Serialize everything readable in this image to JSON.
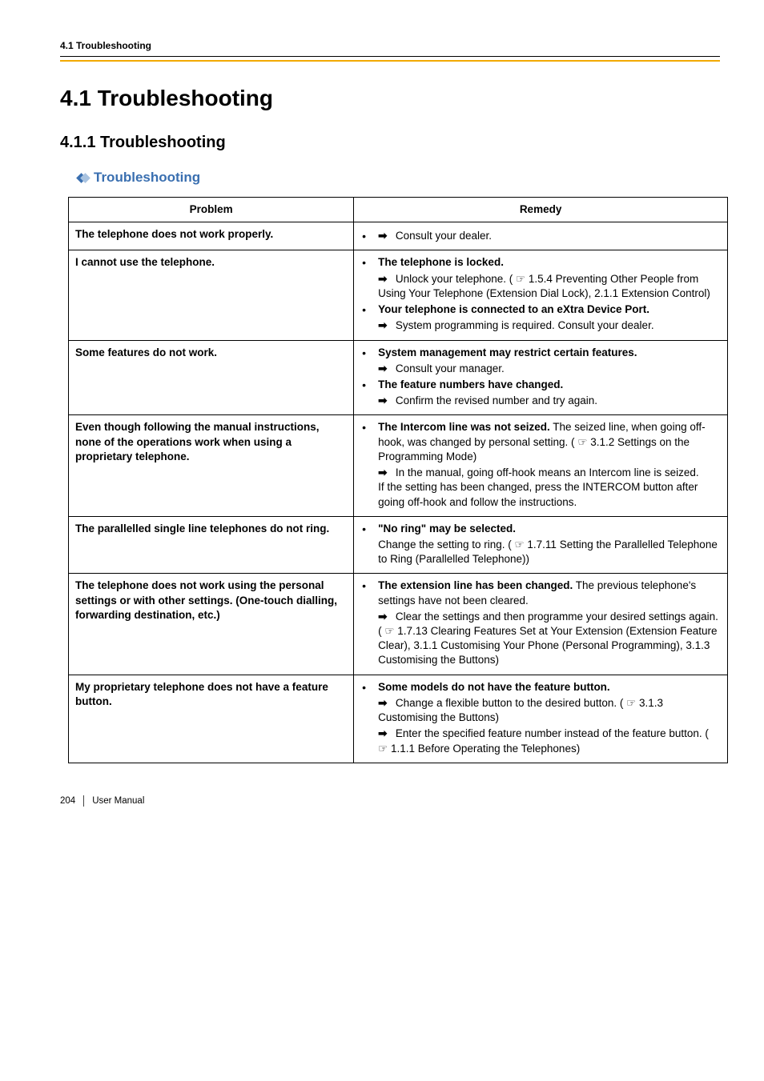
{
  "breadcrumb": "4.1 Troubleshooting",
  "section_number_title": "4.1   Troubleshooting",
  "subsection_number_title": "4.1.1   Troubleshooting",
  "subtitle": "Troubleshooting",
  "colors": {
    "accent": "#f2a900",
    "heading_blue": "#3a6fb0",
    "diamond_fill": "#3a6fb0",
    "diamond_light": "#a9c3e0"
  },
  "table": {
    "header_problem": "Problem",
    "header_remedy": "Remedy"
  },
  "rows": [
    {
      "problem": "The telephone does not work properly.",
      "remedies": [
        {
          "lead": "",
          "arrow_text": "Consult your dealer."
        }
      ]
    },
    {
      "problem": "I cannot use the telephone.",
      "remedies": [
        {
          "lead": "The telephone is locked.",
          "arrow_text": "Unlock your telephone. (",
          "ref": "1.5.4 Preventing Other People from Using Your Telephone (Extension Dial Lock), 2.1.1 Extension Control)"
        },
        {
          "lead": "Your telephone is connected to an eXtra Device Port.",
          "arrow_text": "System programming is required. Consult your dealer."
        }
      ]
    },
    {
      "problem": "Some features do not work.",
      "remedies": [
        {
          "lead": "System management may restrict certain features.",
          "arrow_text": "Consult your manager."
        },
        {
          "lead": "The feature numbers have changed.",
          "arrow_text": "Confirm the revised number and try again."
        }
      ]
    },
    {
      "problem": "Even though following the manual instructions, none of the operations work when using a proprietary telephone.",
      "remedies": [
        {
          "lead": "The Intercom line was not seized.",
          "lead_tail": " The seized line, when going off-hook, was changed by personal setting. (",
          "lead_ref": "3.1.2 Settings on the Programming Mode)",
          "arrow_text": "In the manual, going off-hook means an Intercom line is seized.",
          "tail": "If the setting has been changed, press the INTERCOM button after going off-hook and follow the instructions."
        }
      ]
    },
    {
      "problem": "The parallelled single line telephones do not ring.",
      "remedies": [
        {
          "lead": "\"No ring\" may be selected.",
          "plain": "Change the setting to ring. (",
          "plain_ref": "1.7.11 Setting the Parallelled Telephone to Ring (Parallelled Telephone))"
        }
      ]
    },
    {
      "problem": "The telephone does not work using the personal settings or with other settings. (One-touch dialling, forwarding destination, etc.)",
      "remedies": [
        {
          "lead": "The extension line has been changed.",
          "lead_tail": " The previous telephone's settings have not been cleared.",
          "arrow_text": "Clear the settings and then programme your desired settings again. (",
          "ref": "1.7.13 Clearing Features Set at Your Extension (Extension Feature Clear), 3.1.1 Customising Your Phone (Personal Programming), 3.1.3 Customising the Buttons)"
        }
      ]
    },
    {
      "problem": "My proprietary telephone does not have a feature button.",
      "remedies": [
        {
          "lead": "Some models do not have the feature button.",
          "arrow_text": "Change a flexible button to the desired button. (",
          "ref": "3.1.3 Customising the Buttons)",
          "arrow2_text": "Enter the specified feature number instead of the feature button. (",
          "ref2": "1.1.1 Before Operating the Telephones)"
        }
      ]
    }
  ],
  "footer": {
    "page": "204",
    "label": "User Manual"
  },
  "glyphs": {
    "arrow": "➡",
    "ref_icon": "☞"
  }
}
